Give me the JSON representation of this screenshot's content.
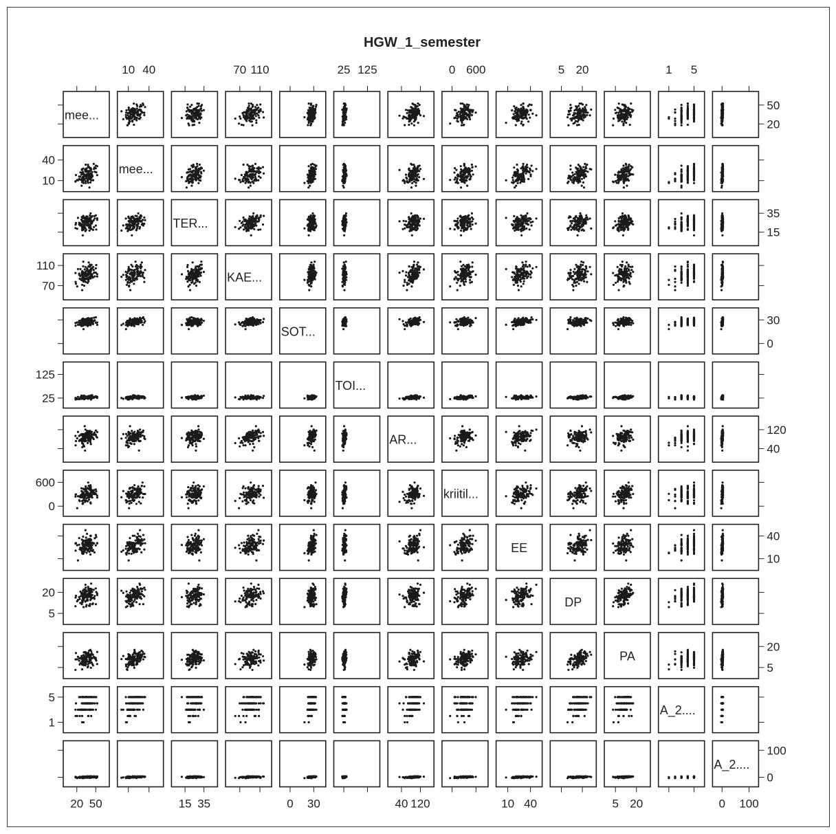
{
  "chart_data": {
    "type": "scatter",
    "title": "HGW_1_semester",
    "variables": [
      {
        "label": "mee...",
        "range": [
          5,
          65
        ],
        "ticks": [
          20,
          50
        ],
        "center": 36,
        "spread": 7,
        "discrete": null
      },
      {
        "label": "mee...",
        "range": [
          0,
          55
        ],
        "ticks": [
          10,
          40
        ],
        "center": 18,
        "spread": 7,
        "discrete": null
      },
      {
        "label": "TER...",
        "range": [
          5,
          45
        ],
        "ticks": [
          15,
          35
        ],
        "center": 25,
        "spread": 5,
        "discrete": null
      },
      {
        "label": "KAE...",
        "range": [
          50,
          125
        ],
        "ticks": [
          70,
          110
        ],
        "center": 92,
        "spread": 11,
        "discrete": null
      },
      {
        "label": "SOT...",
        "range": [
          -8,
          40
        ],
        "ticks": [
          0,
          30
        ],
        "center": 27,
        "spread": 2.5,
        "discrete": null
      },
      {
        "label": "TOI...",
        "range": [
          0,
          160
        ],
        "ticks": [
          25,
          125
        ],
        "center": 28,
        "spread": 4,
        "discrete": null
      },
      {
        "label": "AR...",
        "range": [
          0,
          160
        ],
        "ticks": [
          40,
          120
        ],
        "center": 88,
        "spread": 17,
        "discrete": null
      },
      {
        "label": "kriitil...",
        "range": [
          -150,
          800
        ],
        "ticks": [
          0,
          600
        ],
        "center": 300,
        "spread": 110,
        "discrete": null
      },
      {
        "label": "EE",
        "range": [
          0,
          50
        ],
        "ticks": [
          10,
          40
        ],
        "center": 28,
        "spread": 6,
        "discrete": null
      },
      {
        "label": "DP",
        "range": [
          0,
          27
        ],
        "ticks": [
          5,
          20
        ],
        "center": 17,
        "spread": 3.5,
        "discrete": null
      },
      {
        "label": "PA",
        "range": [
          0,
          27
        ],
        "ticks": [
          5,
          20
        ],
        "center": 11,
        "spread": 3,
        "discrete": null
      },
      {
        "label": "A_2....",
        "range": [
          0,
          6
        ],
        "ticks": [
          1,
          5
        ],
        "center": 4,
        "spread": 1,
        "discrete": [
          1,
          2,
          3,
          4,
          5
        ]
      },
      {
        "label": "A_2....",
        "range": [
          -20,
          120
        ],
        "ticks": [
          0,
          100
        ],
        "center": 1,
        "spread": 1.5,
        "discrete": null
      }
    ]
  }
}
